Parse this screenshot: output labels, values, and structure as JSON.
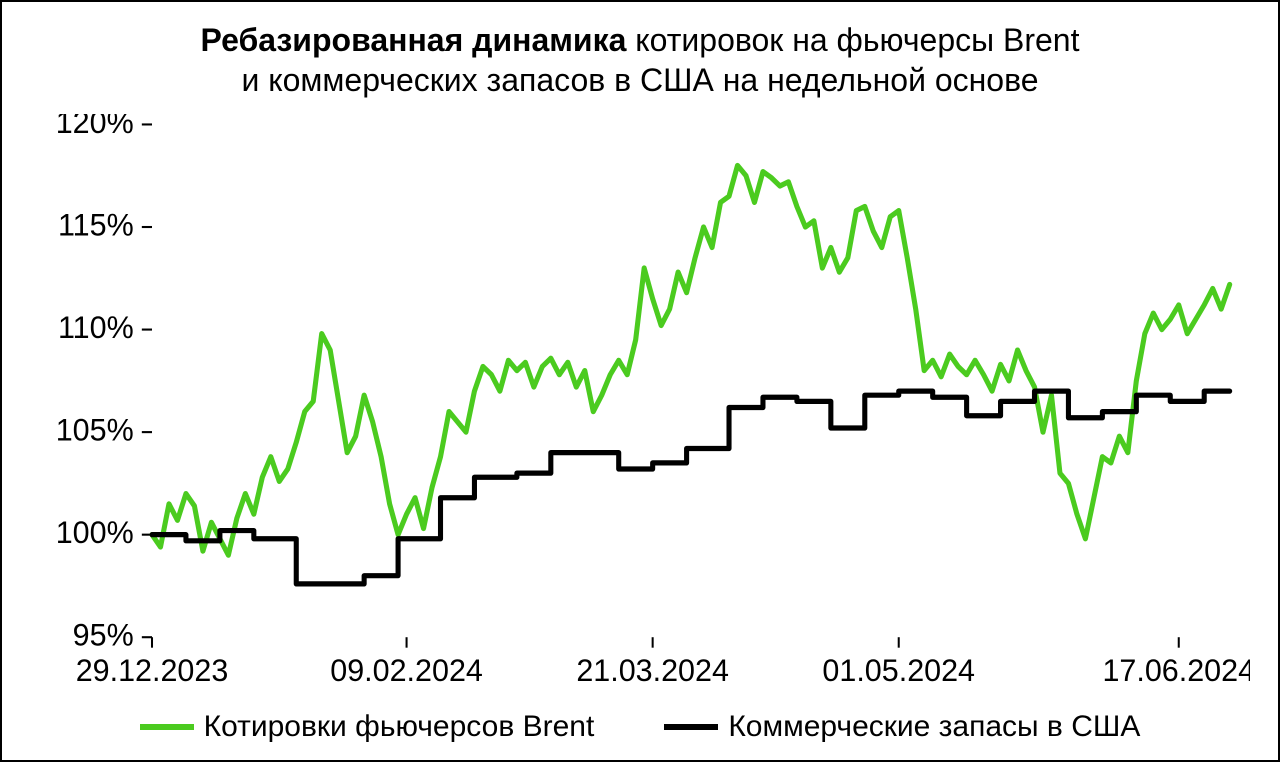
{
  "title": {
    "bold": "Ребазированная динамика",
    "rest_line1": " котировок на фьючерсы Brent",
    "line2": "и коммерческих запасов в США на недельной основе"
  },
  "chart": {
    "type": "line",
    "background_color": "#ffffff",
    "border_color": "#000000",
    "axis_color": "#000000",
    "tick_color": "#000000",
    "text_color": "#000000",
    "font_family": "Arial",
    "axis_label_fontsize": 30,
    "title_fontsize": 32,
    "line_width": 5,
    "x_index_range": [
      0,
      127
    ],
    "x_ticks": [
      {
        "i": 0,
        "label": "29.12.2023"
      },
      {
        "i": 30,
        "label": "09.02.2024"
      },
      {
        "i": 59,
        "label": "21.03.2024"
      },
      {
        "i": 88,
        "label": "01.05.2024"
      },
      {
        "i": 121,
        "label": "17.06.2024"
      }
    ],
    "ylim": [
      95,
      120
    ],
    "ytick_step": 5,
    "yticks": [
      95,
      100,
      105,
      110,
      115,
      120
    ],
    "ytick_format": "{v}%",
    "series": [
      {
        "name": "Котировки фьючерсов Brent",
        "color": "#4bcb1f",
        "style": "smooth",
        "values": [
          100.0,
          99.4,
          101.5,
          100.7,
          102.0,
          101.4,
          99.2,
          100.6,
          99.8,
          99.0,
          100.8,
          102.0,
          101.0,
          102.8,
          103.8,
          102.6,
          103.2,
          104.5,
          106.0,
          106.5,
          109.8,
          109.0,
          106.5,
          104.0,
          104.8,
          106.8,
          105.5,
          103.8,
          101.5,
          100.0,
          101.0,
          101.8,
          100.3,
          102.3,
          103.8,
          106.0,
          105.5,
          105.0,
          107.0,
          108.2,
          107.8,
          107.0,
          108.5,
          108.0,
          108.4,
          107.2,
          108.2,
          108.6,
          107.8,
          108.4,
          107.2,
          108.0,
          106.0,
          106.8,
          107.8,
          108.5,
          107.8,
          109.5,
          113.0,
          111.5,
          110.2,
          111.0,
          112.8,
          111.8,
          113.5,
          115.0,
          114.0,
          116.2,
          116.5,
          118.0,
          117.5,
          116.2,
          117.7,
          117.4,
          117.0,
          117.2,
          116.0,
          115.0,
          115.3,
          113.0,
          114.0,
          112.8,
          113.5,
          115.8,
          116.0,
          114.8,
          114.0,
          115.5,
          115.8,
          113.5,
          111.0,
          108.0,
          108.5,
          107.7,
          108.8,
          108.2,
          107.8,
          108.5,
          107.8,
          107.0,
          108.3,
          107.5,
          109.0,
          108.0,
          107.2,
          105.0,
          106.8,
          103.0,
          102.5,
          101.0,
          99.8,
          101.8,
          103.8,
          103.5,
          104.8,
          104.0,
          107.5,
          109.8,
          110.8,
          110.0,
          110.5,
          111.2,
          109.8,
          110.5,
          111.2,
          112.0,
          111.0,
          112.2
        ]
      },
      {
        "name": "Коммерческие запасы в США",
        "color": "#000000",
        "style": "step",
        "values": [
          100.0,
          100.0,
          100.0,
          100.0,
          99.7,
          99.7,
          99.7,
          99.7,
          100.2,
          100.2,
          100.2,
          100.2,
          99.8,
          99.8,
          99.8,
          99.8,
          99.8,
          97.6,
          97.6,
          97.6,
          97.6,
          97.6,
          97.6,
          97.6,
          97.6,
          98.0,
          98.0,
          98.0,
          98.0,
          99.8,
          99.8,
          99.8,
          99.8,
          99.8,
          101.8,
          101.8,
          101.8,
          101.8,
          102.8,
          102.8,
          102.8,
          102.8,
          102.8,
          103.0,
          103.0,
          103.0,
          103.0,
          104.0,
          104.0,
          104.0,
          104.0,
          104.0,
          104.0,
          104.0,
          104.0,
          103.2,
          103.2,
          103.2,
          103.2,
          103.5,
          103.5,
          103.5,
          103.5,
          104.2,
          104.2,
          104.2,
          104.2,
          104.2,
          106.2,
          106.2,
          106.2,
          106.2,
          106.7,
          106.7,
          106.7,
          106.7,
          106.5,
          106.5,
          106.5,
          106.5,
          105.2,
          105.2,
          105.2,
          105.2,
          106.8,
          106.8,
          106.8,
          106.8,
          107.0,
          107.0,
          107.0,
          107.0,
          106.7,
          106.7,
          106.7,
          106.7,
          105.8,
          105.8,
          105.8,
          105.8,
          106.5,
          106.5,
          106.5,
          106.5,
          107.0,
          107.0,
          107.0,
          107.0,
          105.7,
          105.7,
          105.7,
          105.7,
          106.0,
          106.0,
          106.0,
          106.0,
          106.8,
          106.8,
          106.8,
          106.8,
          106.5,
          106.5,
          106.5,
          106.5,
          107.0,
          107.0,
          107.0,
          107.0
        ]
      }
    ],
    "legend": {
      "position": "bottom",
      "fontsize": 30,
      "swatch_width": 54,
      "swatch_height": 6
    }
  }
}
